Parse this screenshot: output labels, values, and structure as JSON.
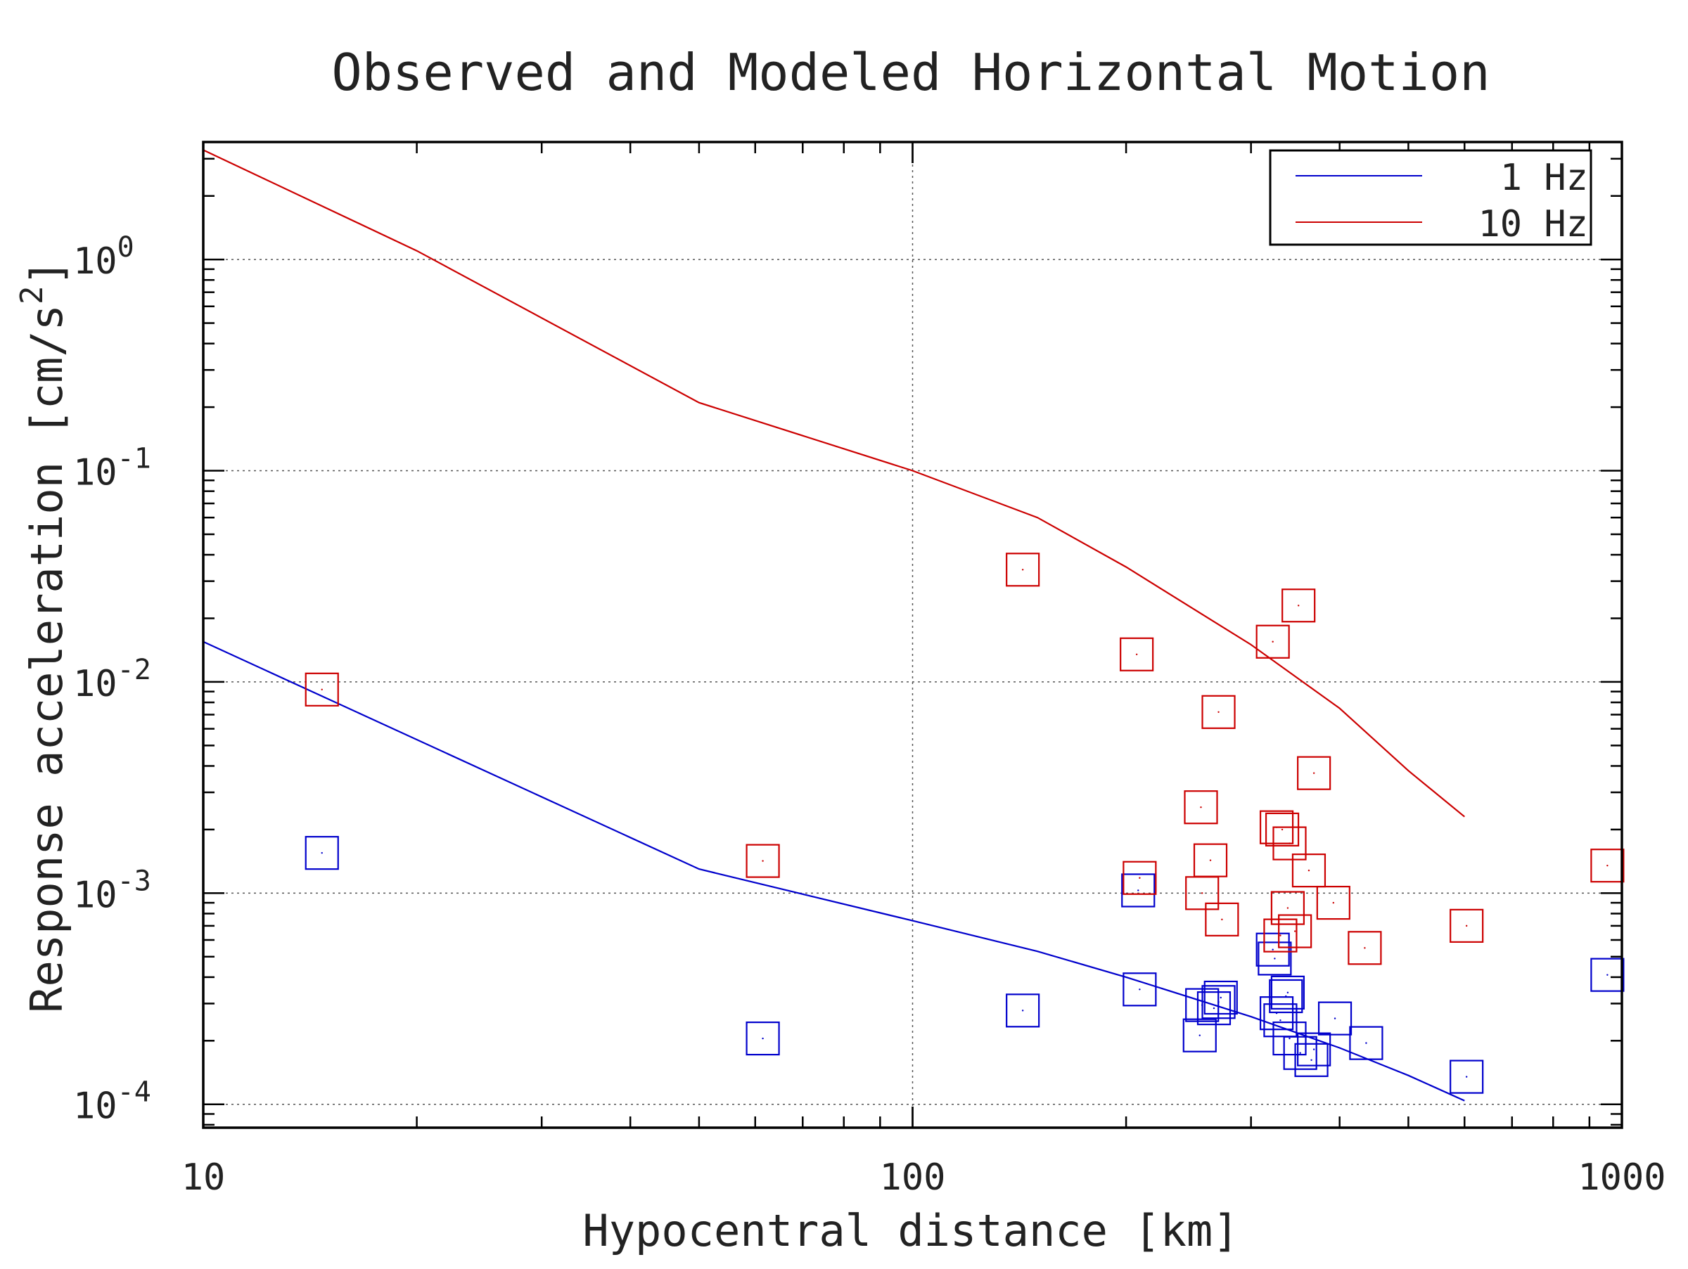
{
  "chart_data": {
    "type": "scatter",
    "title": "Observed and Modeled Horizontal Motion",
    "xlabel": "Hypocentral distance [km]",
    "ylabel_parts": [
      "Response acceleration [cm/s",
      "2",
      "]"
    ],
    "xscale": "log",
    "yscale": "log",
    "xlim": [
      10,
      1000
    ],
    "ylim": [
      7.75e-05,
      3.6
    ],
    "grid": true,
    "legend_position": "top-right",
    "x_ticks": [
      {
        "value": 10,
        "label": "10"
      },
      {
        "value": 100,
        "label": "100"
      },
      {
        "value": 1000,
        "label": "1000"
      }
    ],
    "y_ticks": [
      {
        "value": 1,
        "base": "10",
        "exp": "0"
      },
      {
        "value": 0.1,
        "base": "10",
        "exp": "-1"
      },
      {
        "value": 0.01,
        "base": "10",
        "exp": "-2"
      },
      {
        "value": 0.001,
        "base": "10",
        "exp": "-3"
      },
      {
        "value": 0.0001,
        "base": "10",
        "exp": "-4"
      }
    ],
    "series": [
      {
        "name": "1 Hz",
        "kind": "line",
        "color": "#0000cc",
        "points": [
          [
            10,
            0.0155
          ],
          [
            50,
            0.0013
          ],
          [
            100,
            0.00074
          ],
          [
            150,
            0.00053
          ],
          [
            200,
            0.0004
          ],
          [
            300,
            0.00026
          ],
          [
            400,
            0.000185
          ],
          [
            500,
            0.000137
          ],
          [
            600,
            0.000104
          ]
        ]
      },
      {
        "name": "10 Hz",
        "kind": "line",
        "color": "#cc0000",
        "points": [
          [
            10,
            3.3
          ],
          [
            20,
            1.1
          ],
          [
            50,
            0.21
          ],
          [
            100,
            0.1
          ],
          [
            150,
            0.06
          ],
          [
            200,
            0.035
          ],
          [
            300,
            0.015
          ],
          [
            400,
            0.0075
          ],
          [
            500,
            0.0038
          ],
          [
            600,
            0.0023
          ]
        ]
      },
      {
        "name": "1 Hz observed",
        "kind": "markers",
        "color": "#0000cc",
        "points": [
          [
            14.7,
            0.00155
          ],
          [
            61.5,
            0.000205
          ],
          [
            143,
            0.000278
          ],
          [
            208,
            0.00103
          ],
          [
            209,
            0.00035
          ],
          [
            254,
            0.000212
          ],
          [
            256,
            0.000295
          ],
          [
            266,
            0.000285
          ],
          [
            270,
            0.000305
          ],
          [
            272,
            0.00032
          ],
          [
            322,
            0.00054
          ],
          [
            324,
            0.00049
          ],
          [
            326,
            0.00027
          ],
          [
            330,
            0.00025
          ],
          [
            336,
            0.000325
          ],
          [
            338,
            0.000338
          ],
          [
            340,
            0.000205
          ],
          [
            352,
            0.000175
          ],
          [
            365,
            0.000162
          ],
          [
            368,
            0.000182
          ],
          [
            394,
            0.000255
          ],
          [
            436,
            0.000195
          ],
          [
            604,
            0.000135
          ],
          [
            954,
            0.00041
          ]
        ]
      },
      {
        "name": "10 Hz observed",
        "kind": "markers",
        "color": "#cc0000",
        "points": [
          [
            14.7,
            0.0092
          ],
          [
            61.5,
            0.00142
          ],
          [
            143,
            0.034
          ],
          [
            207,
            0.0135
          ],
          [
            209,
            0.00118
          ],
          [
            255,
            0.00255
          ],
          [
            256,
            0.001
          ],
          [
            263,
            0.00143
          ],
          [
            270,
            0.0072
          ],
          [
            273,
            0.00075
          ],
          [
            322,
            0.0155
          ],
          [
            326,
            0.00205
          ],
          [
            330,
            0.00063
          ],
          [
            332,
            0.002
          ],
          [
            338,
            0.00085
          ],
          [
            340,
            0.00172
          ],
          [
            346,
            0.00066
          ],
          [
            350,
            0.023
          ],
          [
            362,
            0.00128
          ],
          [
            368,
            0.0037
          ],
          [
            392,
            0.0009
          ],
          [
            434,
            0.00055
          ],
          [
            604,
            0.0007
          ],
          [
            954,
            0.00135
          ]
        ]
      }
    ]
  }
}
